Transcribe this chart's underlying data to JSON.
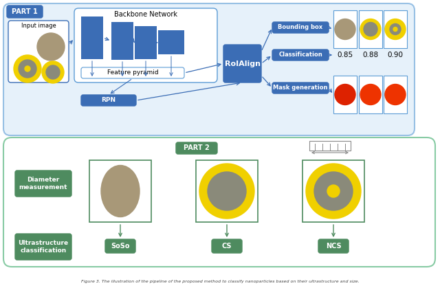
{
  "blue_dark": "#3B6DB5",
  "blue_light": "#5B9BD5",
  "blue_box_bg": "#D6E8F7",
  "blue_outline": "#5B9BD5",
  "green_dark": "#4E8B5F",
  "green_box_bg": "#FFFFFF",
  "green_outline": "#6BBF8E",
  "yellow": "#F0D000",
  "gray_nanoparticle": "#A89878",
  "red_mask": "#DD2200",
  "red_mask2": "#EE3300",
  "gray_inner": "#8A8A7A",
  "part1_label": "PART 1",
  "part2_label": "PART 2",
  "backbone_label": "Backbone Network",
  "feature_pyramid_label": "Feature pyramid",
  "rpn_label": "RPN",
  "roialign_label": "RoIAlign",
  "bounding_box_label": "Bounding box",
  "classification_label": "Classification",
  "mask_generation_label": "Mask generation",
  "diameter_measurement_label": "Diameter\nmeasurement",
  "ultrastructure_label": "Ultrastructure\nclassification",
  "soso_label": "SoSo",
  "cs_label": "CS",
  "ncs_label": "NCS",
  "scores": [
    "0.85",
    "0.88",
    "0.90"
  ],
  "input_image_label": "Input image",
  "bg_color": "#FFFFFF",
  "caption": "Figure 3. The illustration of the pipeline of the proposed method to classify nanoparticles based on their ultrastructure and size."
}
